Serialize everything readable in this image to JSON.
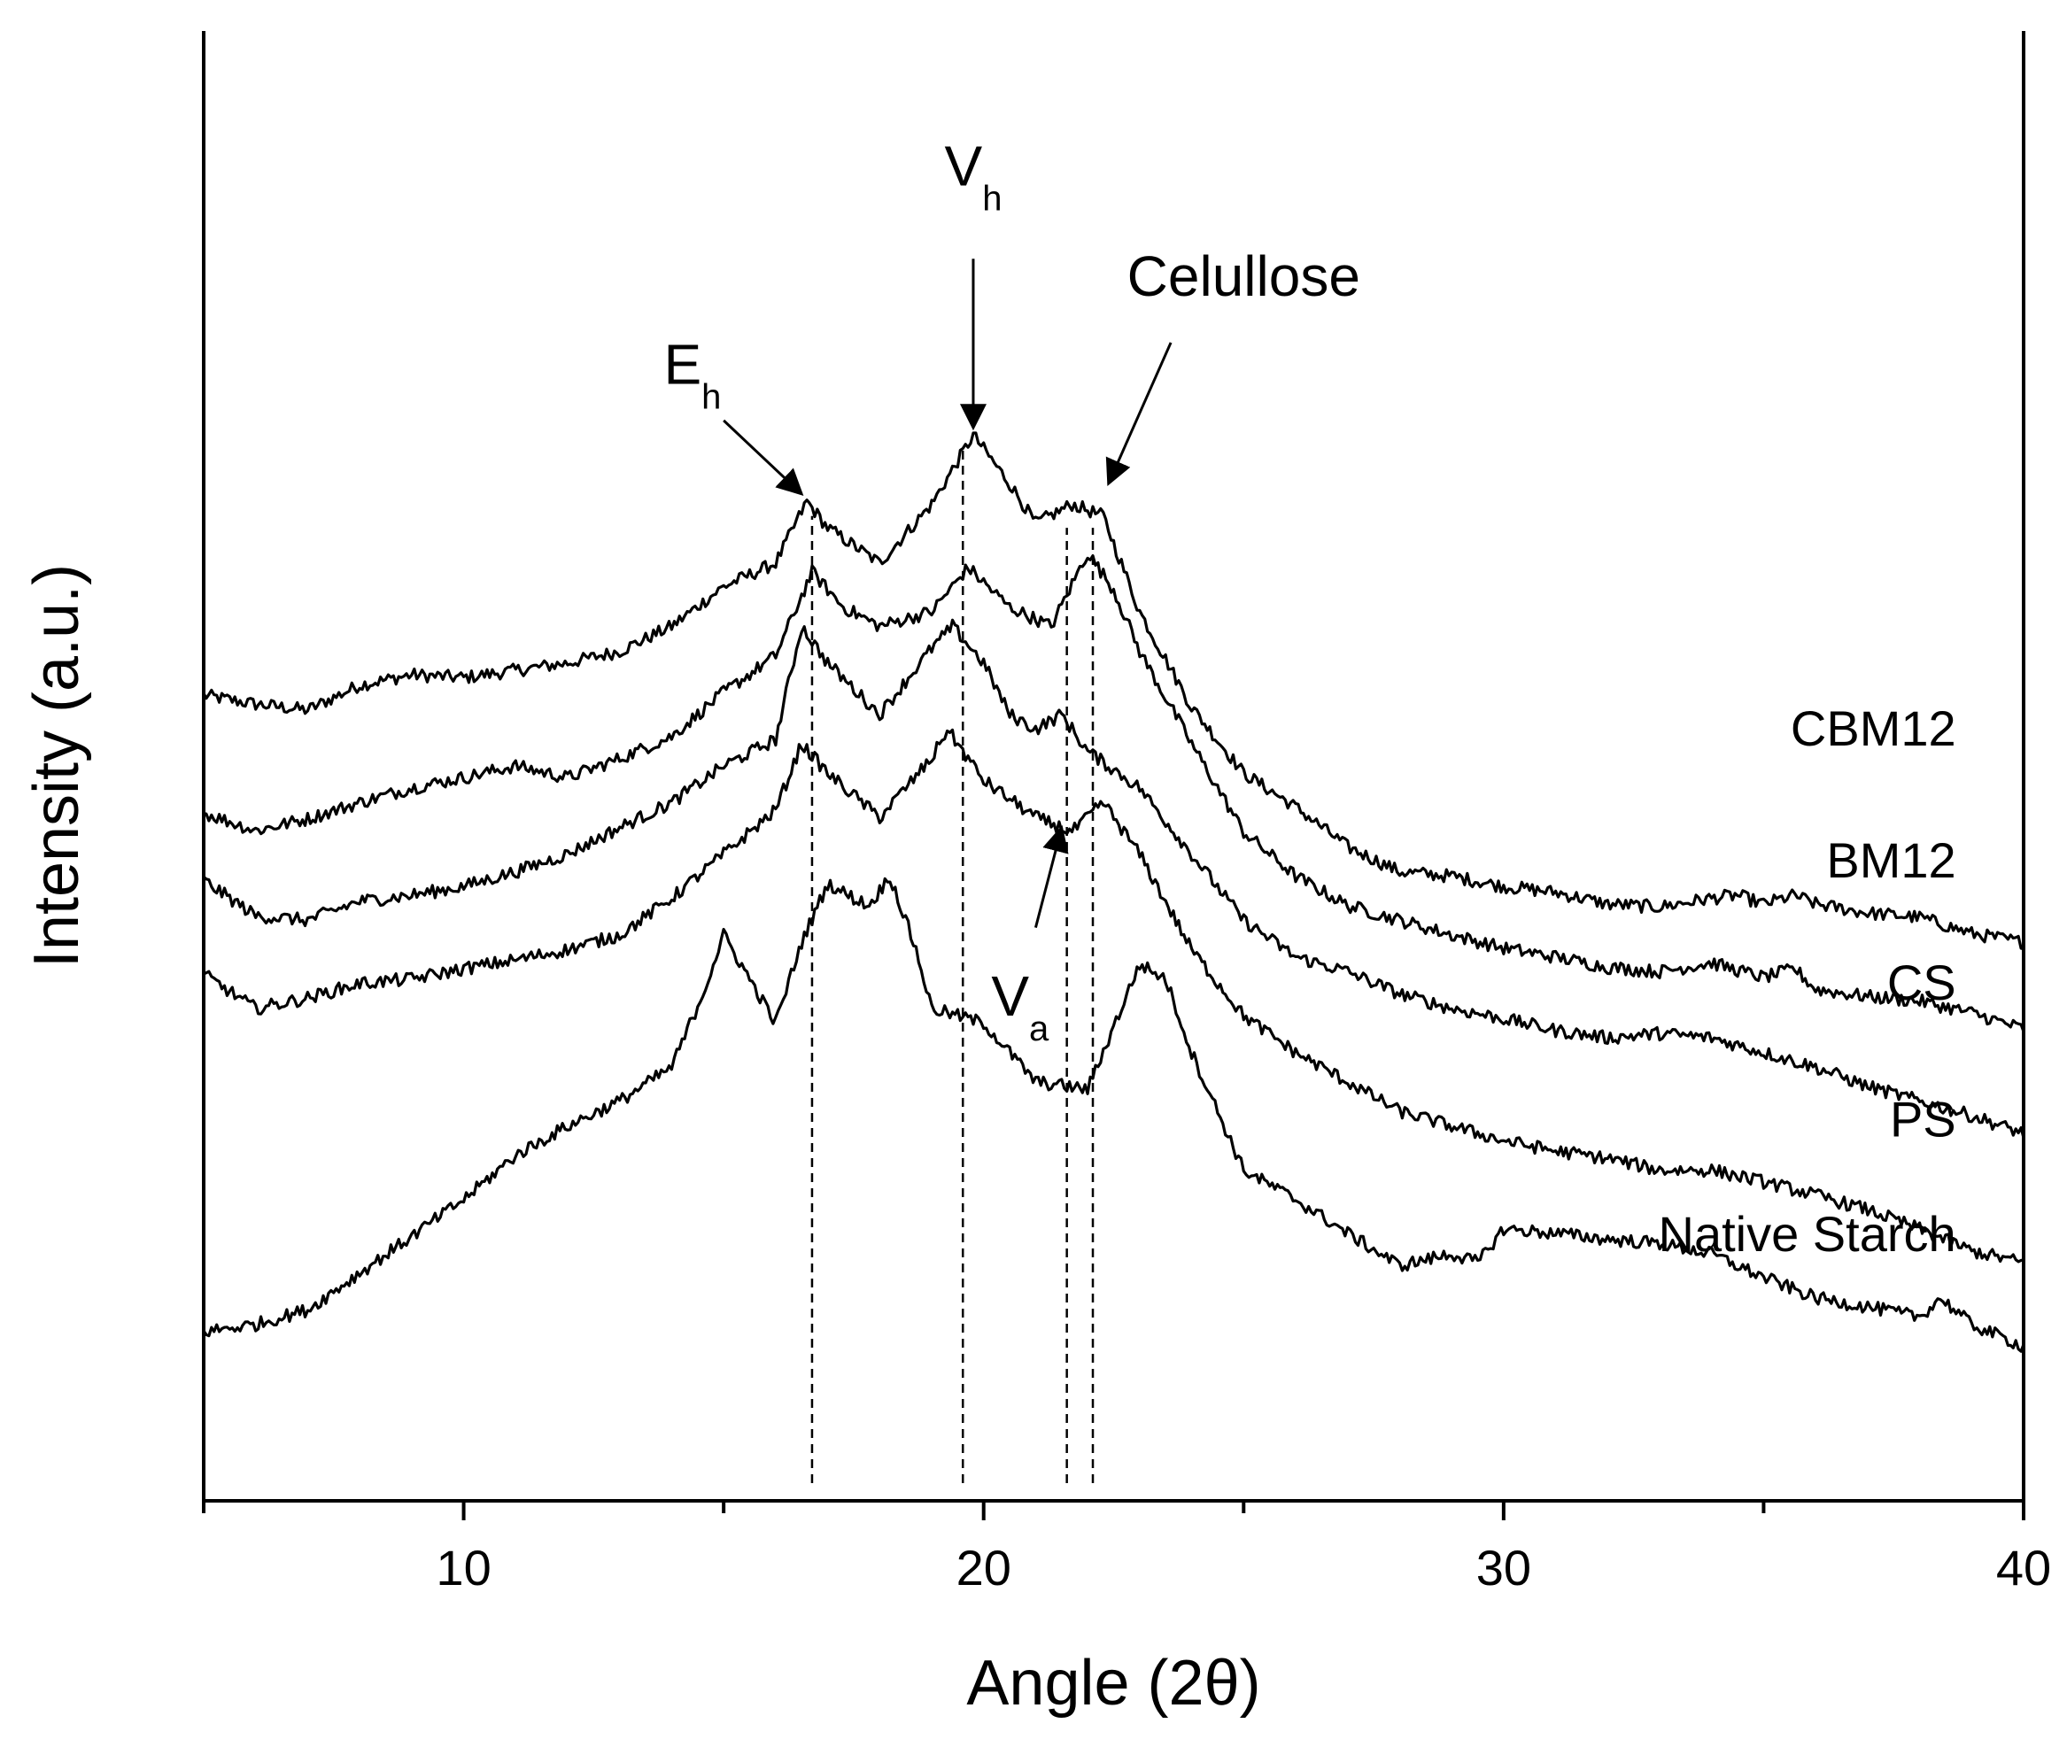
{
  "chart_data": {
    "type": "line",
    "title": "",
    "xlabel": "Angle (2θ)",
    "ylabel": "Intensity (a.u.)",
    "xlim": [
      5,
      40
    ],
    "ylim": [
      0,
      10
    ],
    "x_ticks": [
      10,
      20,
      30,
      40
    ],
    "x_ticks_minor": [
      5,
      15,
      25,
      35
    ],
    "grid": false,
    "legend": "none",
    "series": [
      {
        "name": "CBM12",
        "label_anchor": [
          38.7,
          5.14
        ],
        "points": [
          [
            5,
            5.48
          ],
          [
            6,
            5.42
          ],
          [
            7,
            5.38
          ],
          [
            8,
            5.55
          ],
          [
            9,
            5.62
          ],
          [
            10,
            5.6
          ],
          [
            11,
            5.65
          ],
          [
            12,
            5.7
          ],
          [
            13,
            5.78
          ],
          [
            14,
            5.95
          ],
          [
            15,
            6.22
          ],
          [
            16,
            6.38
          ],
          [
            16.6,
            6.8
          ],
          [
            17,
            6.62
          ],
          [
            18,
            6.38
          ],
          [
            19,
            6.78
          ],
          [
            19.8,
            7.25
          ],
          [
            20.5,
            6.92
          ],
          [
            21,
            6.65
          ],
          [
            21.7,
            6.78
          ],
          [
            22.3,
            6.7
          ],
          [
            23,
            6.05
          ],
          [
            24,
            5.4
          ],
          [
            25,
            4.95
          ],
          [
            26,
            4.72
          ],
          [
            27,
            4.45
          ],
          [
            28,
            4.28
          ],
          [
            29,
            4.25
          ],
          [
            30,
            4.18
          ],
          [
            31,
            4.14
          ],
          [
            32,
            4.06
          ],
          [
            33,
            4.04
          ],
          [
            34,
            4.1
          ],
          [
            34.5,
            4.12
          ],
          [
            35,
            4.06
          ],
          [
            35.6,
            4.12
          ],
          [
            36,
            4.06
          ],
          [
            37,
            4.0
          ],
          [
            38,
            3.97
          ],
          [
            39,
            3.86
          ],
          [
            40,
            3.8
          ]
        ]
      },
      {
        "name": "BM12",
        "label_anchor": [
          38.7,
          4.24
        ],
        "points": [
          [
            5,
            4.68
          ],
          [
            6,
            4.56
          ],
          [
            7,
            4.64
          ],
          [
            8,
            4.75
          ],
          [
            9,
            4.85
          ],
          [
            10,
            4.92
          ],
          [
            11,
            5.0
          ],
          [
            12,
            4.92
          ],
          [
            13,
            5.05
          ],
          [
            14,
            5.2
          ],
          [
            15,
            5.5
          ],
          [
            16,
            5.75
          ],
          [
            16.7,
            6.32
          ],
          [
            17.3,
            6.08
          ],
          [
            18,
            5.95
          ],
          [
            19,
            6.05
          ],
          [
            19.7,
            6.35
          ],
          [
            20.5,
            6.08
          ],
          [
            21.3,
            5.95
          ],
          [
            22,
            6.45
          ],
          [
            22.5,
            6.2
          ],
          [
            23,
            5.78
          ],
          [
            24,
            5.15
          ],
          [
            25,
            4.55
          ],
          [
            26,
            4.25
          ],
          [
            27,
            4.05
          ],
          [
            28,
            3.95
          ],
          [
            29,
            3.85
          ],
          [
            30,
            3.76
          ],
          [
            31,
            3.7
          ],
          [
            32,
            3.63
          ],
          [
            33,
            3.6
          ],
          [
            34,
            3.66
          ],
          [
            35,
            3.56
          ],
          [
            35.6,
            3.62
          ],
          [
            36,
            3.48
          ],
          [
            37,
            3.43
          ],
          [
            38,
            3.4
          ],
          [
            39,
            3.32
          ],
          [
            40,
            3.21
          ]
        ]
      },
      {
        "name": "CS",
        "label_anchor": [
          38.7,
          3.41
        ],
        "points": [
          [
            5,
            4.22
          ],
          [
            6,
            3.98
          ],
          [
            7,
            3.95
          ],
          [
            8,
            4.08
          ],
          [
            9,
            4.12
          ],
          [
            10,
            4.18
          ],
          [
            11,
            4.28
          ],
          [
            12,
            4.4
          ],
          [
            13,
            4.58
          ],
          [
            14,
            4.75
          ],
          [
            15,
            5.0
          ],
          [
            16,
            5.18
          ],
          [
            16.5,
            5.95
          ],
          [
            17,
            5.7
          ],
          [
            18,
            5.35
          ],
          [
            19,
            5.8
          ],
          [
            19.4,
            5.95
          ],
          [
            20,
            5.7
          ],
          [
            20.5,
            5.35
          ],
          [
            21,
            5.25
          ],
          [
            21.5,
            5.35
          ],
          [
            22,
            5.1
          ],
          [
            23,
            4.85
          ],
          [
            24,
            4.4
          ],
          [
            25,
            3.95
          ],
          [
            26,
            3.7
          ],
          [
            27,
            3.6
          ],
          [
            28,
            3.45
          ],
          [
            29,
            3.35
          ],
          [
            30,
            3.28
          ],
          [
            31,
            3.2
          ],
          [
            32,
            3.15
          ],
          [
            33,
            3.18
          ],
          [
            34,
            3.15
          ],
          [
            35,
            3.05
          ],
          [
            36,
            2.95
          ],
          [
            37,
            2.82
          ],
          [
            38,
            2.72
          ],
          [
            39,
            2.62
          ],
          [
            40,
            2.5
          ]
        ]
      },
      {
        "name": "PS",
        "label_anchor": [
          38.7,
          2.48
        ],
        "points": [
          [
            5,
            3.58
          ],
          [
            6,
            3.35
          ],
          [
            7,
            3.42
          ],
          [
            8,
            3.52
          ],
          [
            9,
            3.55
          ],
          [
            10,
            3.62
          ],
          [
            11,
            3.68
          ],
          [
            12,
            3.75
          ],
          [
            13,
            3.85
          ],
          [
            14,
            4.1
          ],
          [
            15,
            4.4
          ],
          [
            16,
            4.7
          ],
          [
            16.5,
            5.15
          ],
          [
            17,
            4.95
          ],
          [
            18,
            4.65
          ],
          [
            19,
            5.05
          ],
          [
            19.3,
            5.25
          ],
          [
            20,
            4.9
          ],
          [
            21,
            4.65
          ],
          [
            21.7,
            4.55
          ],
          [
            22.3,
            4.75
          ],
          [
            23,
            4.4
          ],
          [
            24,
            3.75
          ],
          [
            25,
            3.3
          ],
          [
            26,
            3.05
          ],
          [
            27,
            2.85
          ],
          [
            28,
            2.65
          ],
          [
            29,
            2.55
          ],
          [
            30,
            2.45
          ],
          [
            31,
            2.38
          ],
          [
            32,
            2.33
          ],
          [
            33,
            2.25
          ],
          [
            34,
            2.25
          ],
          [
            35,
            2.17
          ],
          [
            36,
            2.08
          ],
          [
            37,
            1.98
          ],
          [
            38,
            1.85
          ],
          [
            39,
            1.7
          ],
          [
            40,
            1.62
          ]
        ]
      },
      {
        "name": "Native Starch",
        "label_anchor": [
          38.7,
          1.7
        ],
        "points": [
          [
            5,
            1.15
          ],
          [
            6,
            1.2
          ],
          [
            7,
            1.3
          ],
          [
            8,
            1.55
          ],
          [
            9,
            1.8
          ],
          [
            10,
            2.05
          ],
          [
            11,
            2.35
          ],
          [
            12,
            2.55
          ],
          [
            13,
            2.72
          ],
          [
            14,
            2.95
          ],
          [
            14.6,
            3.45
          ],
          [
            15,
            3.85
          ],
          [
            15.5,
            3.55
          ],
          [
            16,
            3.25
          ],
          [
            16.5,
            3.8
          ],
          [
            17,
            4.2
          ],
          [
            17.5,
            4.1
          ],
          [
            17.8,
            4.05
          ],
          [
            18.2,
            4.25
          ],
          [
            18.7,
            3.75
          ],
          [
            19,
            3.35
          ],
          [
            20,
            3.25
          ],
          [
            20.5,
            3.05
          ],
          [
            21,
            2.85
          ],
          [
            22,
            2.8
          ],
          [
            23,
            3.65
          ],
          [
            23.5,
            3.55
          ],
          [
            24,
            3.05
          ],
          [
            25,
            2.25
          ],
          [
            26,
            2.05
          ],
          [
            27,
            1.82
          ],
          [
            28,
            1.6
          ],
          [
            29,
            1.68
          ],
          [
            29.5,
            1.62
          ],
          [
            30,
            1.85
          ],
          [
            31,
            1.82
          ],
          [
            32,
            1.78
          ],
          [
            33,
            1.75
          ],
          [
            34,
            1.68
          ],
          [
            35,
            1.52
          ],
          [
            36,
            1.38
          ],
          [
            37,
            1.32
          ],
          [
            38,
            1.25
          ],
          [
            38.4,
            1.38
          ],
          [
            39,
            1.2
          ],
          [
            40,
            1.05
          ]
        ]
      }
    ],
    "reference_lines": [
      {
        "x": 16.7,
        "y_top": 6.7,
        "style": "dashed"
      },
      {
        "x": 19.6,
        "y_top": 7.15,
        "style": "dashed"
      },
      {
        "x": 21.6,
        "y_top": 6.62,
        "style": "dashed"
      },
      {
        "x": 22.1,
        "y_top": 6.62,
        "style": "dashed"
      }
    ],
    "annotations": [
      {
        "name": "Eh",
        "main": "E",
        "sub": "h",
        "text_anchor": [
          14.4,
          7.6
        ],
        "arrow_from": [
          15.0,
          7.35
        ],
        "arrow_to": [
          16.5,
          6.85
        ]
      },
      {
        "name": "Vh",
        "main": "V",
        "sub": "h",
        "text_anchor": [
          19.8,
          8.95
        ],
        "arrow_from": [
          19.8,
          8.45
        ],
        "arrow_to": [
          19.8,
          7.3
        ]
      },
      {
        "name": "Celullose",
        "main": "Celullose",
        "sub": "",
        "text_anchor": [
          25.0,
          8.2
        ],
        "arrow_from": [
          23.6,
          7.88
        ],
        "arrow_to": [
          22.4,
          6.92
        ]
      },
      {
        "name": "Va",
        "main": "V",
        "sub": "a",
        "text_anchor": [
          20.7,
          3.3
        ],
        "arrow_from": [
          21.0,
          3.9
        ],
        "arrow_to": [
          21.5,
          4.58
        ]
      }
    ]
  }
}
